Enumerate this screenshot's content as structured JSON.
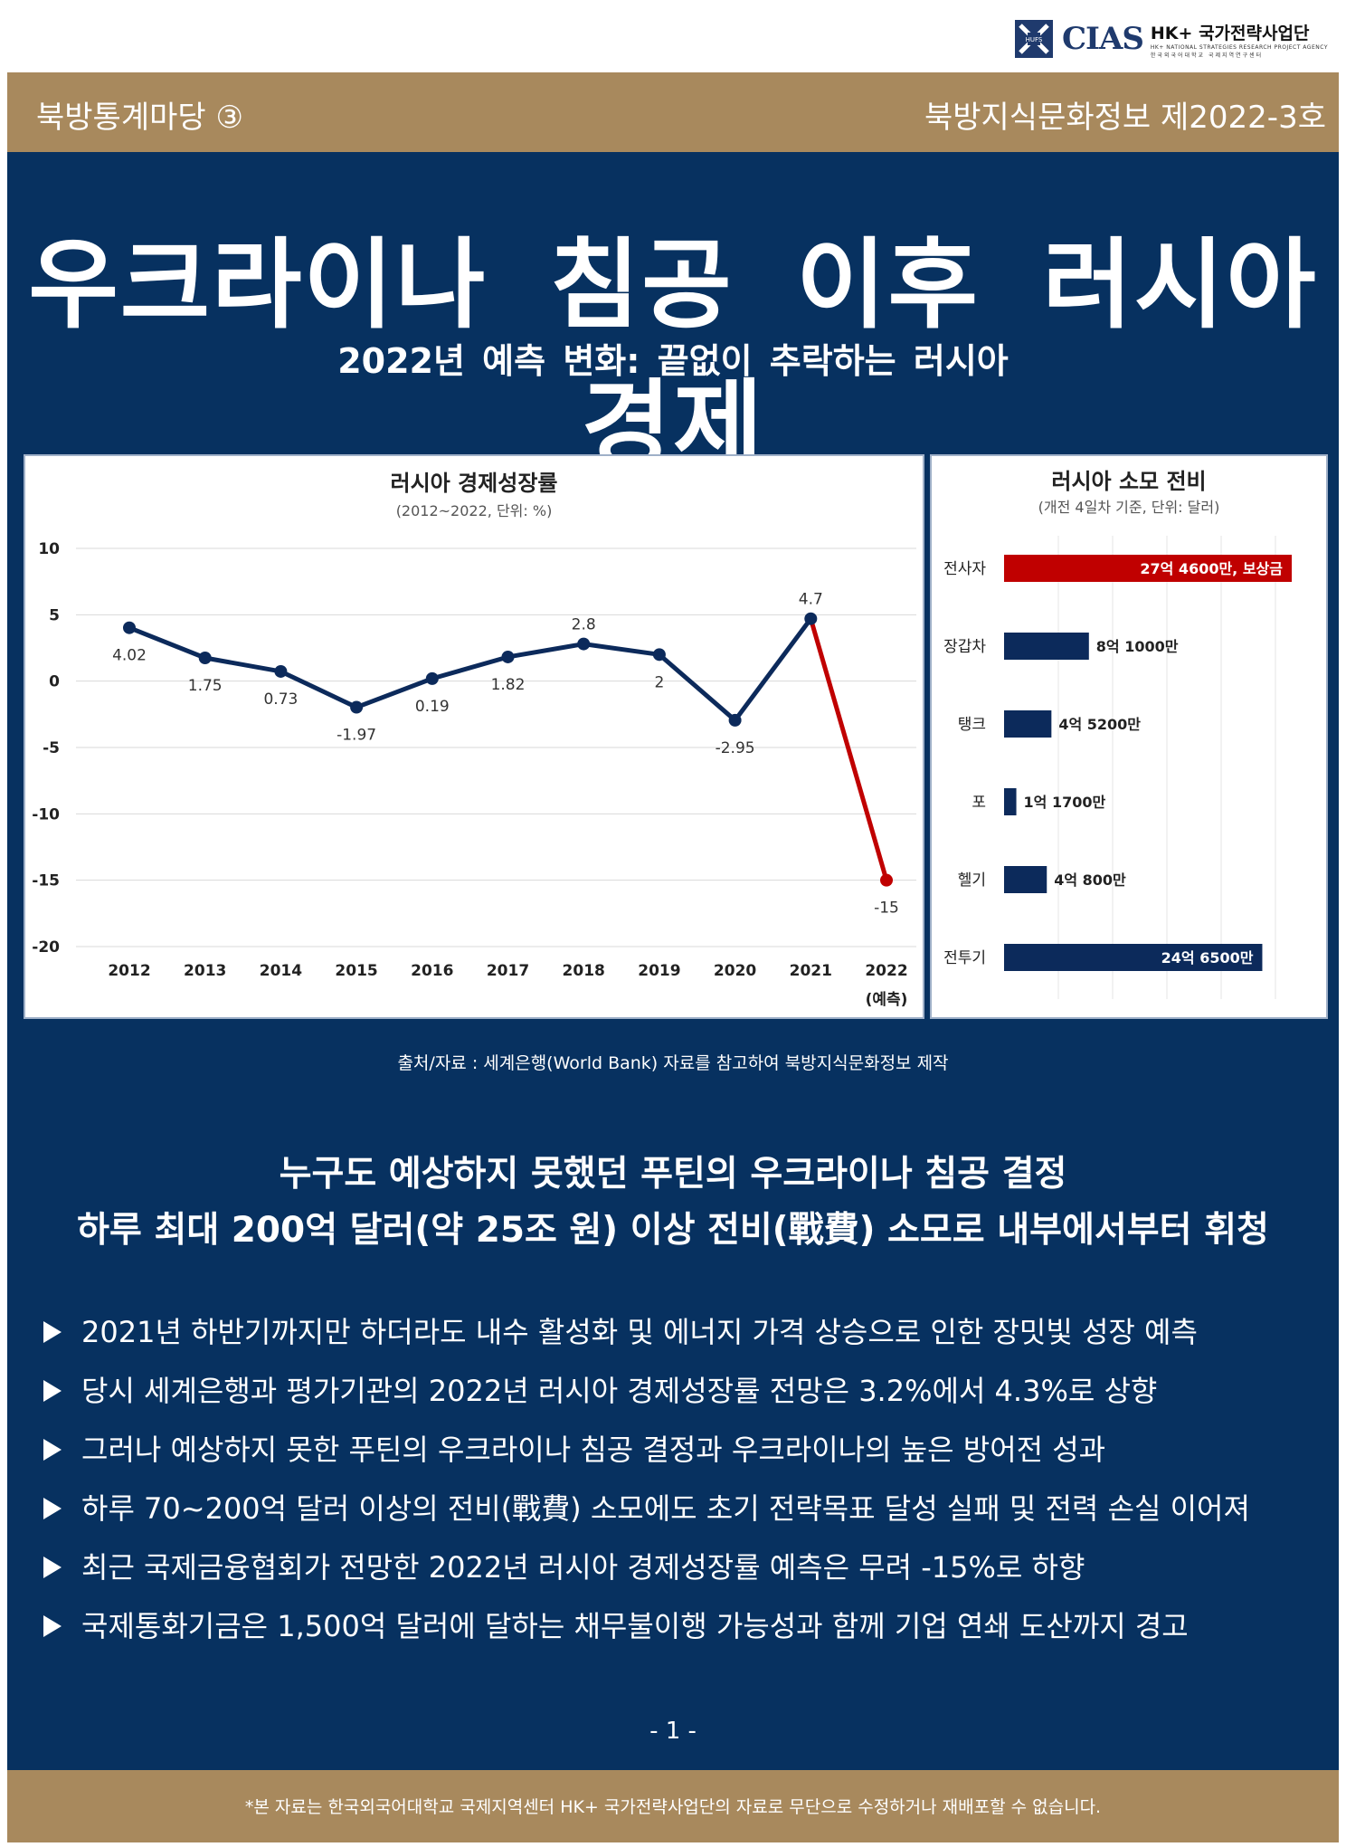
{
  "header": {
    "logo_mark": "HUFS",
    "logo_cias": "CIAS",
    "logo_title": "HK+ 국가전략사업단",
    "logo_sub_en": "HK+ NATIONAL STRATEGIES RESEARCH PROJECT AGENCY",
    "logo_sub_ko": "한국외국어대학교 국제지역연구센터",
    "series_label": "북방통계마당 ③",
    "issue_label": "북방지식문화정보 제2022-3호"
  },
  "title": "우크라이나 침공 이후 러시아 경제",
  "subtitle": "2022년 예측 변화: 끝없이 추락하는 러시아",
  "chart_data": [
    {
      "type": "line",
      "title": "러시아 경제성장률",
      "subtitle": "(2012~2022, 단위: %)",
      "x": [
        "2012",
        "2013",
        "2014",
        "2015",
        "2016",
        "2017",
        "2018",
        "2019",
        "2020",
        "2021",
        "2022"
      ],
      "x_note": "(예측)",
      "series": [
        {
          "values": [
            4.02,
            1.75,
            0.73,
            -1.97,
            0.19,
            1.82,
            2.8,
            2,
            -2.95,
            4.7,
            -15
          ]
        }
      ],
      "data_labels": [
        "4.02",
        "1.75",
        "0.73",
        "-1.97",
        "0.19",
        "1.82",
        "2.8",
        "2",
        "-2.95",
        "4.7",
        "-15"
      ],
      "y_ticks": [
        "10",
        "5",
        "0",
        "-5",
        "-10",
        "-15",
        "-20"
      ],
      "ylim": [
        -20,
        10
      ],
      "grid": true,
      "colors": {
        "line": "#0c2a5b",
        "forecast": "#c00000"
      }
    },
    {
      "type": "bar",
      "orientation": "horizontal",
      "title": "러시아 소모 전비",
      "subtitle": "(개전 4일차 기준, 단위: 달러)",
      "categories": [
        "전사자",
        "장갑차",
        "탱크",
        "포",
        "헬기",
        "전투기"
      ],
      "values": [
        2746000000,
        810000000,
        452000000,
        117000000,
        408000000,
        2465000000
      ],
      "labels": [
        "27억 4600만, 보상금",
        "8억 1000만",
        "4억 5200만",
        "1억 1700만",
        "4억 800만",
        "24억 6500만"
      ],
      "grid": true,
      "colors": {
        "default": "#0c2a5b",
        "highlight": "#c00000"
      }
    }
  ],
  "source": "출처/자료 : 세계은행(World Bank) 자료를 참고하여 북방지식문화정보 제작",
  "headline1": "누구도 예상하지 못했던 푸틴의 우크라이나 침공 결정",
  "headline2": "하루 최대 200억 달러(약 25조 원) 이상 전비(戰費) 소모로 내부에서부터 휘청",
  "bullets": [
    "2021년 하반기까지만 하더라도 내수 활성화 및 에너지 가격 상승으로 인한 장밋빛 성장 예측",
    "당시 세계은행과 평가기관의 2022년 러시아 경제성장률 전망은 3.2%에서 4.3%로 상향",
    "그러나 예상하지 못한 푸틴의 우크라이나 침공 결정과 우크라이나의 높은 방어전 성과",
    "하루 70~200억 달러 이상의 전비(戰費) 소모에도 초기 전략목표 달성 실패 및 전력 손실 이어져",
    "최근 국제금융협회가 전망한 2022년 러시아 경제성장률 예측은 무려 -15%로 하향",
    "국제통화기금은 1,500억 달러에 달하는 채무불이행 가능성과 함께 기업 연쇄 도산까지 경고"
  ],
  "page_number": "- 1 -",
  "footer": "*본 자료는 한국외국어대학교 국제지역센터 HK+ 국가전략사업단의 자료로 무단으로 수정하거나 재배포할 수 없습니다."
}
